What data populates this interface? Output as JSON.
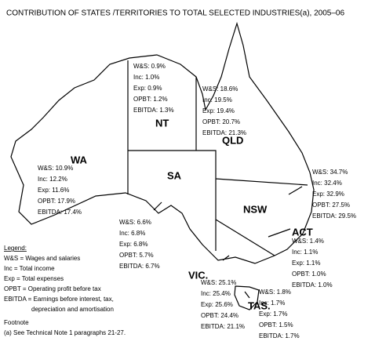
{
  "title": "CONTRIBUTION OF STATES /TERRITORIES TO TOTAL SELECTED INDUSTRIES(a), 2005–06",
  "regions": [
    {
      "name": "WA",
      "stats": [
        "W&S: 10.9%",
        "Inc: 12.2%",
        "Exp: 11.6%",
        "OPBT: 17.9%",
        "EBITDA: 17.4%"
      ]
    },
    {
      "name": "NT",
      "stats": [
        "W&S: 0.9%",
        "Inc: 1.0%",
        "Exp: 0.9%",
        "OPBT: 1.2%",
        "EBITDA: 1.3%"
      ]
    },
    {
      "name": "QLD",
      "stats": [
        "W&S: 18.6%",
        "Inc: 19.5%",
        "Exp: 19.4%",
        "OPBT: 20.7%",
        "EBITDA: 21.3%"
      ]
    },
    {
      "name": "SA",
      "stats": [
        "W&S: 6.6%",
        "Inc: 6.8%",
        "Exp: 6.8%",
        "OPBT: 5.7%",
        "EBITDA: 6.7%"
      ]
    },
    {
      "name": "NSW",
      "stats": [
        "W&S: 34.7%",
        "Inc: 32.4%",
        "Exp: 32.9%",
        "OPBT: 27.5%",
        "EBITDA: 29.5%"
      ]
    },
    {
      "name": "ACT",
      "stats": [
        "W&S: 1.4%",
        "Inc: 1.1%",
        "Exp: 1.1%",
        "OPBT: 1.0%",
        "EBITDA: 1.0%"
      ]
    },
    {
      "name": "VIC.",
      "stats": [
        "W&S: 25.1%",
        "Inc: 25.4%",
        "Exp: 25.6%",
        "OPBT: 24.4%",
        "EBITDA: 21.1%"
      ]
    },
    {
      "name": "TAS.",
      "stats": [
        "W&S: 1.8%",
        "Inc: 1.7%",
        "Exp: 1.7%",
        "OPBT: 1.5%",
        "EBITDA: 1.7%"
      ]
    }
  ],
  "legend": {
    "heading": "Legend:",
    "lines": [
      "W&S = Wages and salaries",
      "Inc = Total income",
      "Exp = Total expenses",
      "OPBT = Operating profit before tax",
      "EBITDA = Earnings before interest, tax,",
      "depreciation and amortisation"
    ]
  },
  "footnote": {
    "heading": "Footnote",
    "lines": [
      "(a) See Technical Note 1 paragraphs 21-27."
    ]
  }
}
